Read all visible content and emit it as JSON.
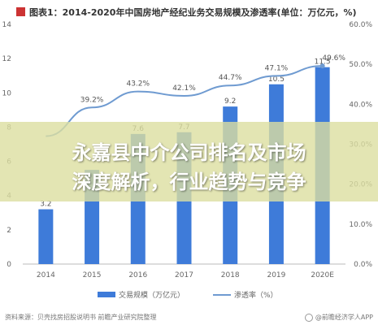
{
  "chart_data": {
    "type": "bar",
    "title": "图表1：2014-2020年中国房地产经纪业务交易规模及渗透率(单位：万亿元，%)",
    "categories": [
      "2014",
      "2015",
      "2016",
      "2017",
      "2018",
      "2019",
      "2020E"
    ],
    "series": [
      {
        "name": "交易规模（万亿元）",
        "type": "bar",
        "axis": "left",
        "values": [
          3.2,
          5.5,
          7.6,
          7.7,
          9.2,
          10.5,
          11.5
        ],
        "value_labels": [
          "3.2",
          "",
          "7.6",
          "7.7",
          "9.2",
          "10.5",
          "11.5"
        ],
        "color": "#3E7BD9"
      },
      {
        "name": "渗透率（%）",
        "type": "line",
        "axis": "right",
        "values": [
          32.0,
          39.2,
          43.2,
          42.1,
          44.7,
          47.1,
          49.6
        ],
        "value_labels": [
          "",
          "39.2%",
          "43.2%",
          "42.1%",
          "44.7%",
          "47.1%",
          "49.6%"
        ],
        "color": "#6F9BD1"
      }
    ],
    "y_left": {
      "range": [
        0,
        14
      ],
      "ticks": [
        "0",
        "2",
        "4",
        "6",
        "8",
        "10",
        "12",
        "14"
      ]
    },
    "y_right": {
      "range": [
        0,
        60
      ],
      "ticks": [
        "0.0%",
        "10.0%",
        "20.0%",
        "30.0%",
        "40.0%",
        "50.0%",
        "60.0%"
      ]
    },
    "xlabel": "",
    "ylabel": "",
    "grid": false,
    "legend_position": "bottom"
  },
  "overlay": {
    "line1": "永嘉县中介公司排名及市场",
    "line2": "深度解析，行业趋势与竞争"
  },
  "footer": {
    "source": "资料来源：贝壳找房招股说明书 前瞻产业研究院整理",
    "brand": "@前瞻经济学人APP"
  },
  "colors": {
    "bar": "#3E7BD9",
    "line": "#6F9BD1",
    "banner": "#DCDEA0"
  }
}
